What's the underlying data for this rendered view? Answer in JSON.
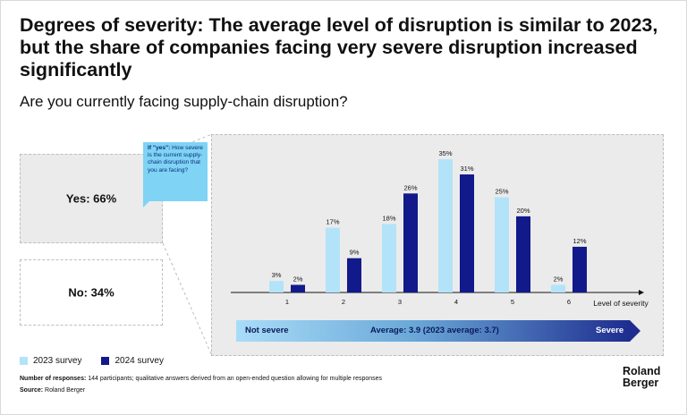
{
  "header": {
    "title": "Degrees of severity: The average level of disruption is similar to 2023, but the share of companies facing very severe disruption increased significantly",
    "subtitle": "Are you currently facing supply-chain disruption?"
  },
  "answers": {
    "yes": "Yes: 66%",
    "no": "No: 34%"
  },
  "callout": {
    "lead": "If \"yes\":",
    "text": " How severe is the current supply-chain disruption that you are facing?"
  },
  "scale": {
    "left": "Not severe",
    "middle": "Average: 3.9 (2023 average: 3.7)",
    "right": "Severe"
  },
  "legend": {
    "s2023": "2023 survey",
    "s2024": "2024 survey"
  },
  "footer": {
    "responses_label": "Number of responses:",
    "responses_text": " 144 participants; qualitative answers derived from an open-ended question allowing for multiple responses",
    "source_label": "Source:",
    "source_text": " Roland Berger"
  },
  "logo": {
    "line1": "Roland",
    "line2": "Berger"
  },
  "colors": {
    "s2023": "#b3e3f9",
    "s2024": "#12198a",
    "panel": "#ebebeb"
  },
  "chart_data": {
    "type": "bar",
    "categories": [
      "1",
      "2",
      "3",
      "4",
      "5",
      "6"
    ],
    "xlabel": "Level of severity",
    "ylabel": "",
    "ylim": [
      0,
      35
    ],
    "series": [
      {
        "name": "2023 survey",
        "values": [
          3,
          17,
          18,
          35,
          25,
          2
        ],
        "labels": [
          "3%",
          "17%",
          "18%",
          "35%",
          "25%",
          "2%"
        ],
        "color": "#b3e3f9"
      },
      {
        "name": "2024 survey",
        "values": [
          2,
          9,
          26,
          31,
          20,
          12
        ],
        "labels": [
          "2%",
          "9%",
          "26%",
          "31%",
          "20%",
          "12%"
        ],
        "color": "#12198a"
      }
    ]
  }
}
